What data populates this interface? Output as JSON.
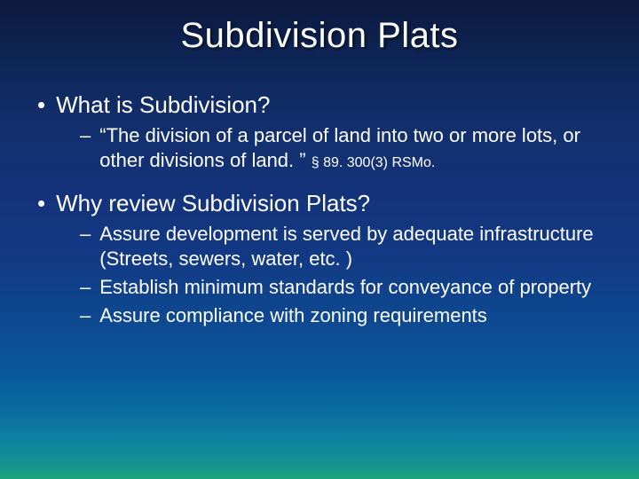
{
  "slide": {
    "title": "Subdivision Plats",
    "background_colors": {
      "top": "#0b1a3d",
      "mid": "#14327a",
      "bottom": "#1fa57a"
    },
    "text_color": "#ffffff",
    "title_fontsize": 40,
    "l1_fontsize": 26,
    "l2_fontsize": 22,
    "cite_fontsize": 16,
    "bullets": [
      {
        "text": "What is Subdivision?",
        "sub": [
          {
            "text": "“The division of a parcel of land into two or more lots, or other divisions of land. ” ",
            "cite": "§ 89. 300(3) RSMo."
          }
        ]
      },
      {
        "text": "Why review Subdivision Plats?",
        "sub": [
          {
            "text": "Assure development is served by adequate infrastructure (Streets, sewers, water, etc. )"
          },
          {
            "text": "Establish minimum standards for conveyance of property"
          },
          {
            "text": "Assure compliance with zoning requirements"
          }
        ]
      }
    ]
  }
}
